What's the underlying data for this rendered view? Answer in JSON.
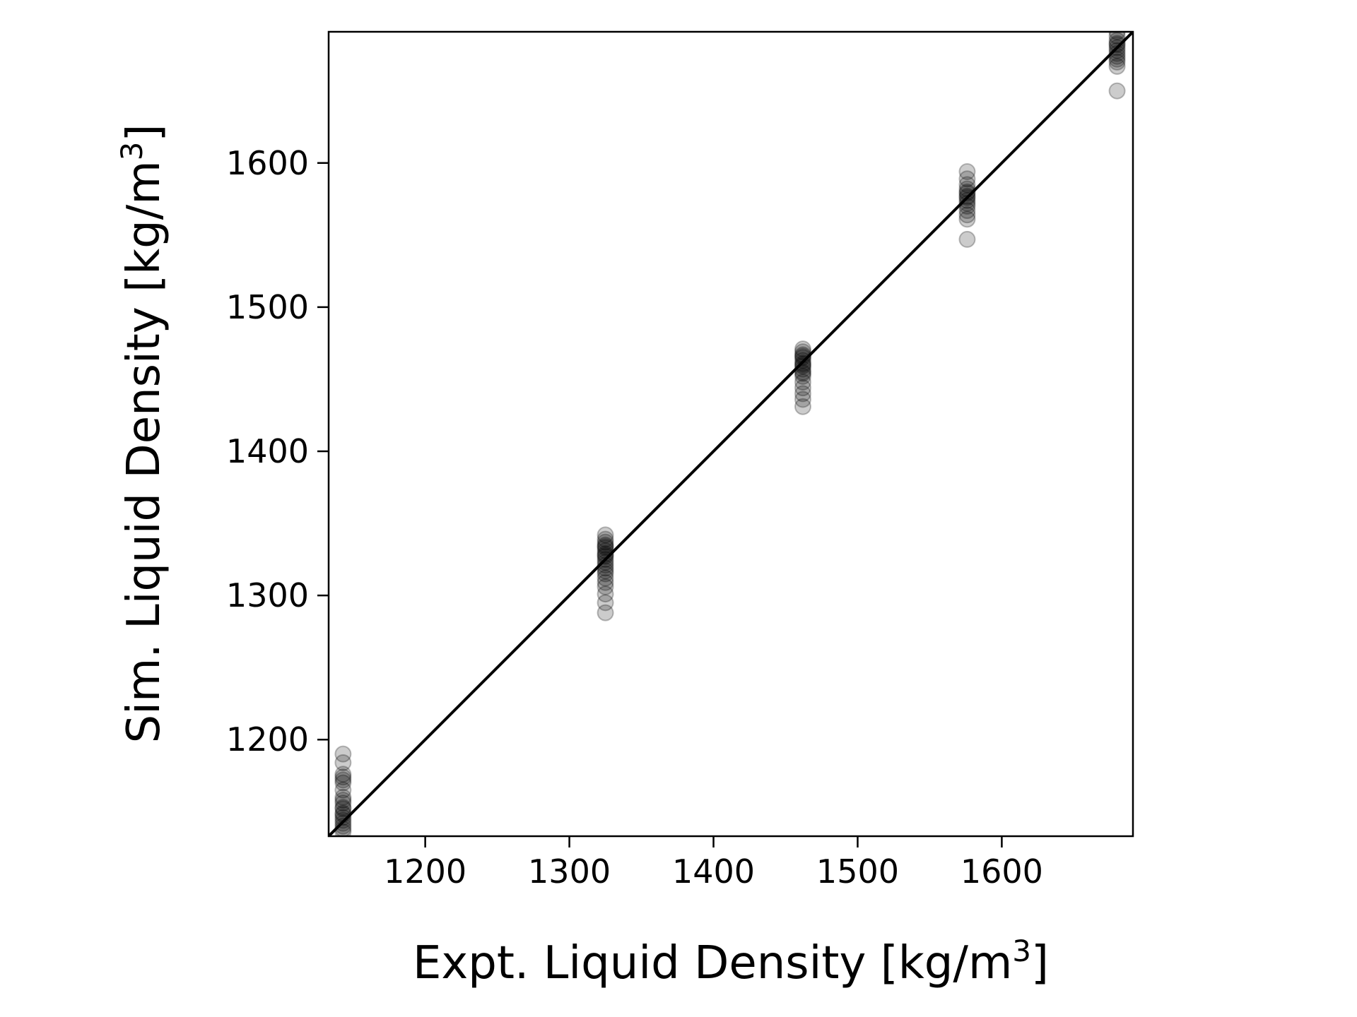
{
  "chart_data": {
    "type": "scatter",
    "xlabel": "Expt. Liquid Density [kg/m",
    "xlabel_sup": "3",
    "xlabel_tail": "]",
    "ylabel": "Sim. Liquid Density [kg/m",
    "ylabel_sup": "3",
    "ylabel_tail": "]",
    "xlim": [
      1133,
      1691
    ],
    "ylim": [
      1133,
      1691
    ],
    "xticks": [
      1200,
      1300,
      1400,
      1500,
      1600
    ],
    "yticks": [
      1200,
      1300,
      1400,
      1500,
      1600
    ],
    "grid": false,
    "marker_color": "#000000",
    "marker_alpha": 0.2,
    "line_color": "#000000",
    "reference_line": [
      [
        1133,
        1133
      ],
      [
        1691,
        1691
      ]
    ],
    "series": [
      {
        "x": [
          1143,
          1143,
          1143,
          1143,
          1143,
          1143,
          1143,
          1143,
          1143,
          1143,
          1143,
          1143,
          1143,
          1143,
          1143,
          1143,
          1143,
          1143,
          1143,
          1143,
          1325,
          1325,
          1325,
          1325,
          1325,
          1325,
          1325,
          1325,
          1325,
          1325,
          1325,
          1325,
          1325,
          1325,
          1325,
          1325,
          1325,
          1325,
          1325,
          1325,
          1325,
          1325,
          1462,
          1462,
          1462,
          1462,
          1462,
          1462,
          1462,
          1462,
          1462,
          1462,
          1462,
          1462,
          1462,
          1462,
          1462,
          1462,
          1462,
          1462,
          1576,
          1576,
          1576,
          1576,
          1576,
          1576,
          1576,
          1576,
          1576,
          1576,
          1576,
          1576,
          1576,
          1576,
          1576,
          1680,
          1680,
          1680,
          1680,
          1680,
          1680,
          1680,
          1680,
          1680,
          1680,
          1680,
          1680,
          1680
        ],
        "y": [
          1190,
          1184,
          1176,
          1172,
          1165,
          1160,
          1156,
          1152,
          1149,
          1146,
          1144,
          1142,
          1140,
          1138,
          1136,
          1148,
          1153,
          1158,
          1170,
          1174,
          1342,
          1339,
          1337,
          1335,
          1333,
          1331,
          1329,
          1327,
          1325,
          1323,
          1321,
          1319,
          1317,
          1315,
          1312,
          1309,
          1306,
          1301,
          1295,
          1288,
          1334,
          1328,
          1471,
          1469,
          1467,
          1465,
          1463,
          1461,
          1459,
          1457,
          1455,
          1452,
          1448,
          1444,
          1440,
          1436,
          1431,
          1466,
          1460,
          1454,
          1594,
          1589,
          1585,
          1582,
          1579,
          1576,
          1574,
          1572,
          1570,
          1567,
          1564,
          1561,
          1547,
          1580,
          1577,
          1691,
          1688,
          1685,
          1682,
          1680,
          1678,
          1676,
          1674,
          1672,
          1670,
          1667,
          1650,
          1683
        ]
      }
    ]
  }
}
